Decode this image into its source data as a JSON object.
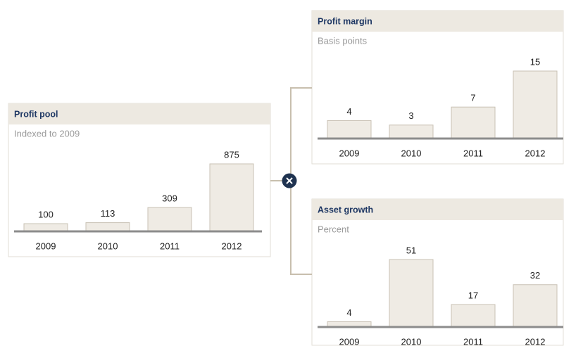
{
  "chart_data": [
    {
      "type": "bar",
      "title": "Profit pool",
      "subtitle": "Indexed to 2009",
      "categories": [
        "2009",
        "2010",
        "2011",
        "2012"
      ],
      "values": [
        100,
        113,
        309,
        875
      ],
      "color": "#efebe4"
    },
    {
      "type": "bar",
      "title": "Profit margin",
      "subtitle": "Basis points",
      "categories": [
        "2009",
        "2010",
        "2011",
        "2012"
      ],
      "values": [
        4,
        3,
        7,
        15
      ],
      "color": "#efebe4"
    },
    {
      "type": "bar",
      "title": "Asset growth",
      "subtitle": "Percent",
      "categories": [
        "2009",
        "2010",
        "2011",
        "2012"
      ],
      "values": [
        4,
        51,
        17,
        32
      ],
      "color": "#efebe4"
    }
  ]
}
